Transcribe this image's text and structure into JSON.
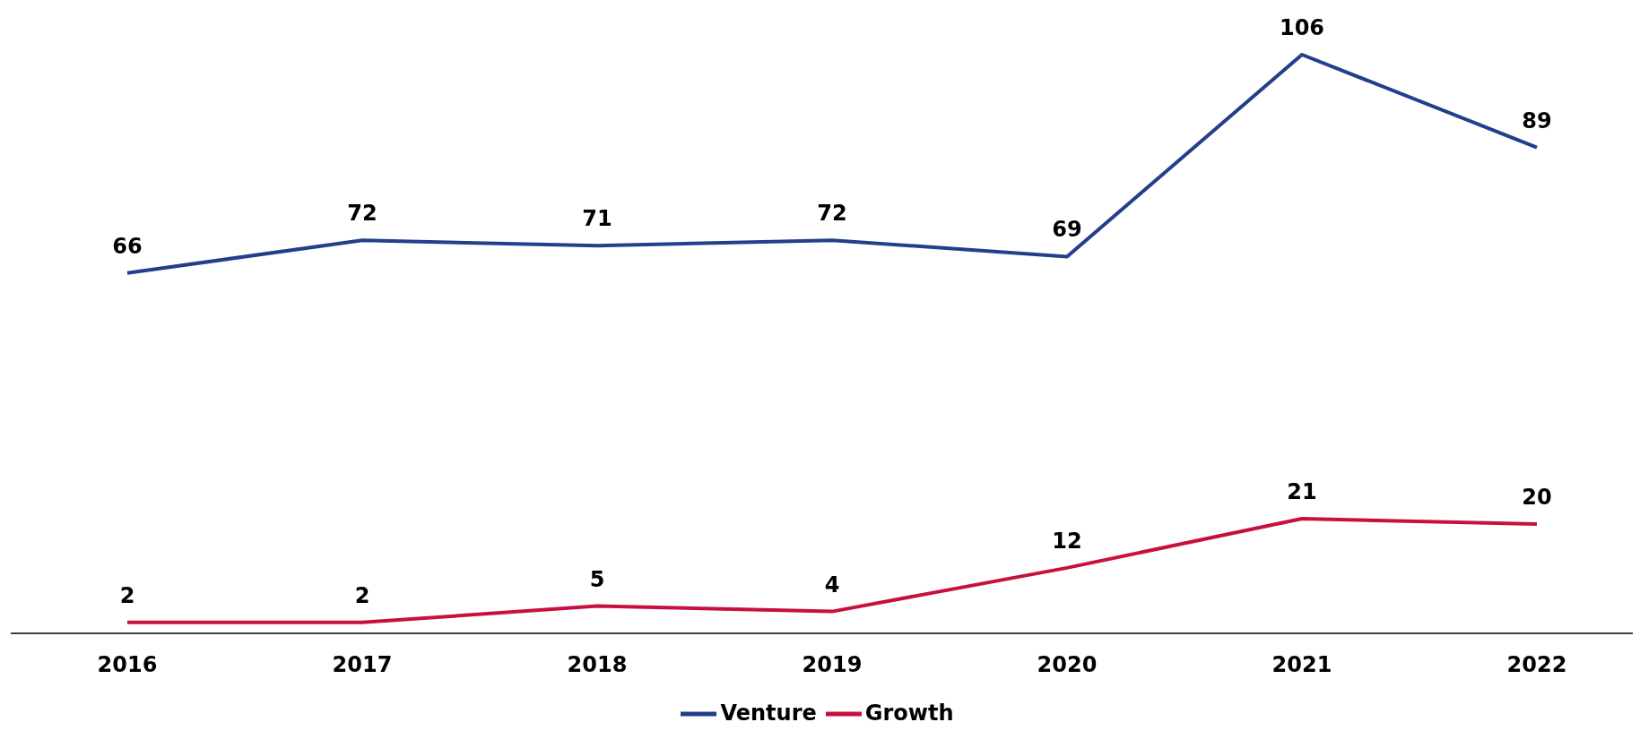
{
  "chart_data": {
    "type": "line",
    "categories": [
      "2016",
      "2017",
      "2018",
      "2019",
      "2020",
      "2021",
      "2022"
    ],
    "series": [
      {
        "name": "Venture",
        "color": "#233e8b",
        "values": [
          66,
          72,
          71,
          72,
          69,
          106,
          89
        ]
      },
      {
        "name": "Growth",
        "color": "#c8103e",
        "values": [
          2,
          2,
          5,
          4,
          12,
          21,
          20
        ]
      }
    ],
    "data_labels": true,
    "legend": "bottom",
    "grid": false,
    "marker": "none",
    "line_style": "solid"
  }
}
